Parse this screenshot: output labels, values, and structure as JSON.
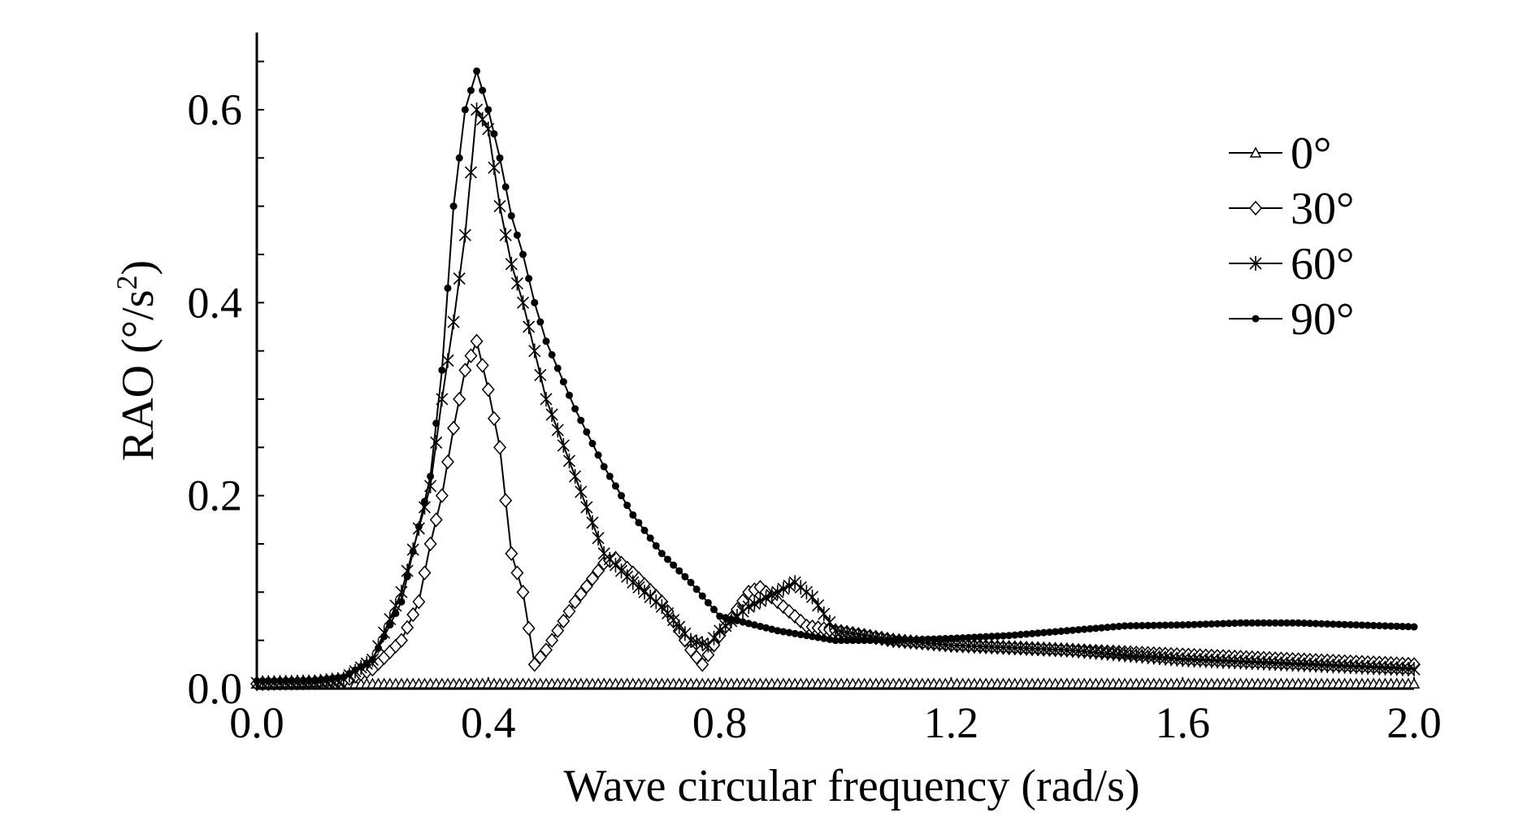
{
  "chart_data": {
    "type": "line",
    "xlabel": "Wave circular frequency (rad/s)",
    "ylabel_main": "RAO (°/s",
    "ylabel_sup": "2",
    "ylabel_close": ")",
    "xlim": [
      0.0,
      2.0
    ],
    "ylim": [
      0.0,
      0.68
    ],
    "xticks": [
      "0.0",
      "0.4",
      "0.8",
      "1.2",
      "1.6",
      "2.0"
    ],
    "xtick_values": [
      0.0,
      0.4,
      0.8,
      1.2,
      1.6,
      2.0
    ],
    "yticks": [
      "0.0",
      "0.2",
      "0.4",
      "0.6"
    ],
    "ytick_values": [
      0.0,
      0.2,
      0.4,
      0.6
    ],
    "legend_position": "top-right",
    "series": [
      {
        "name": "0°",
        "marker": "triangle",
        "x": [
          0.0,
          0.2,
          0.4,
          0.6,
          0.8,
          1.0,
          1.2,
          1.4,
          1.6,
          1.8,
          2.0
        ],
        "values": [
          0.005,
          0.005,
          0.005,
          0.005,
          0.005,
          0.005,
          0.005,
          0.005,
          0.005,
          0.005,
          0.005
        ]
      },
      {
        "name": "30°",
        "marker": "diamond",
        "x": [
          0.0,
          0.1,
          0.15,
          0.2,
          0.25,
          0.28,
          0.3,
          0.32,
          0.34,
          0.36,
          0.38,
          0.4,
          0.42,
          0.44,
          0.46,
          0.48,
          0.5,
          0.55,
          0.6,
          0.62,
          0.65,
          0.7,
          0.75,
          0.77,
          0.8,
          0.85,
          0.87,
          0.9,
          0.95,
          1.0,
          1.1,
          1.2,
          1.4,
          1.6,
          1.8,
          2.0
        ],
        "values": [
          0.005,
          0.006,
          0.008,
          0.02,
          0.05,
          0.09,
          0.15,
          0.2,
          0.27,
          0.33,
          0.36,
          0.31,
          0.25,
          0.14,
          0.1,
          0.025,
          0.04,
          0.09,
          0.13,
          0.135,
          0.12,
          0.09,
          0.04,
          0.025,
          0.055,
          0.1,
          0.105,
          0.09,
          0.065,
          0.06,
          0.05,
          0.045,
          0.04,
          0.035,
          0.03,
          0.025
        ]
      },
      {
        "name": "60°",
        "marker": "star",
        "x": [
          0.0,
          0.1,
          0.15,
          0.2,
          0.25,
          0.3,
          0.32,
          0.34,
          0.36,
          0.38,
          0.4,
          0.42,
          0.44,
          0.46,
          0.5,
          0.55,
          0.6,
          0.65,
          0.7,
          0.75,
          0.78,
          0.8,
          0.85,
          0.9,
          0.93,
          0.96,
          1.0,
          1.1,
          1.2,
          1.4,
          1.6,
          1.8,
          2.0
        ],
        "values": [
          0.006,
          0.007,
          0.01,
          0.03,
          0.1,
          0.21,
          0.3,
          0.38,
          0.47,
          0.6,
          0.58,
          0.5,
          0.44,
          0.4,
          0.3,
          0.22,
          0.14,
          0.11,
          0.085,
          0.05,
          0.045,
          0.06,
          0.085,
          0.1,
          0.11,
          0.095,
          0.06,
          0.05,
          0.045,
          0.04,
          0.03,
          0.025,
          0.02
        ]
      },
      {
        "name": "90°",
        "marker": "dot",
        "x": [
          0.0,
          0.1,
          0.15,
          0.2,
          0.25,
          0.3,
          0.32,
          0.34,
          0.36,
          0.38,
          0.4,
          0.42,
          0.44,
          0.46,
          0.48,
          0.5,
          0.55,
          0.6,
          0.65,
          0.7,
          0.75,
          0.8,
          0.9,
          1.0,
          1.1,
          1.2,
          1.3,
          1.4,
          1.5,
          1.6,
          1.7,
          1.8,
          1.9,
          2.0
        ],
        "values": [
          0.008,
          0.008,
          0.012,
          0.03,
          0.09,
          0.22,
          0.33,
          0.5,
          0.6,
          0.64,
          0.6,
          0.55,
          0.49,
          0.45,
          0.4,
          0.36,
          0.29,
          0.23,
          0.18,
          0.14,
          0.11,
          0.075,
          0.06,
          0.05,
          0.05,
          0.052,
          0.055,
          0.06,
          0.065,
          0.066,
          0.068,
          0.068,
          0.066,
          0.064
        ]
      }
    ]
  }
}
